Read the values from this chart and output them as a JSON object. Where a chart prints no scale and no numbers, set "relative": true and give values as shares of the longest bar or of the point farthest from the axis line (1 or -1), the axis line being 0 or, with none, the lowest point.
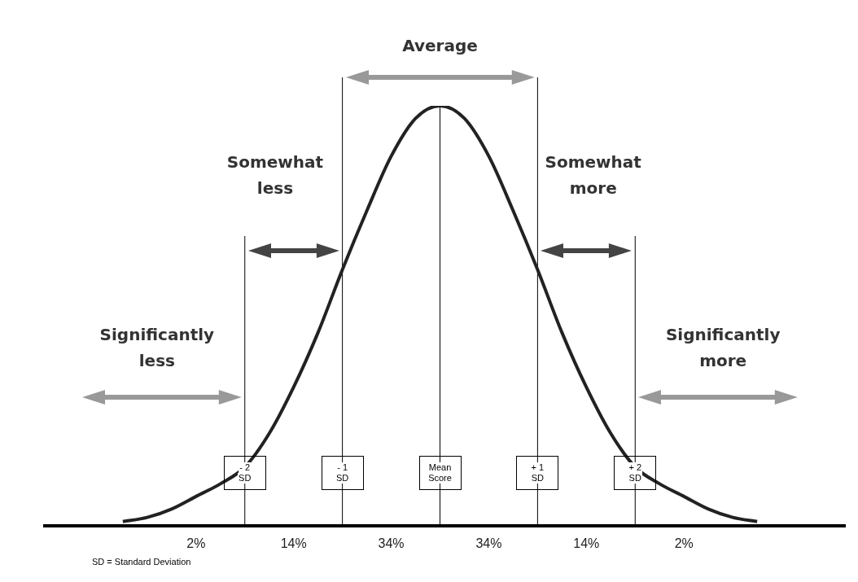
{
  "chart_data": {
    "type": "line",
    "relative": true,
    "x": [
      -3.25,
      -3,
      -2.75,
      -2.5,
      -2.25,
      -2,
      -1.75,
      -1.5,
      -1.25,
      -1,
      -0.75,
      -0.5,
      -0.25,
      0,
      0.25,
      0.5,
      0.75,
      1,
      1.25,
      1.5,
      1.75,
      2,
      2.25,
      2.5,
      2.75,
      3,
      3.25
    ],
    "series": [
      {
        "color": "#222222",
        "values": [
          0.01,
          0.02,
          0.04,
          0.07,
          0.1,
          0.14,
          0.22,
          0.33,
          0.46,
          0.61,
          0.75,
          0.88,
          0.97,
          1,
          0.97,
          0.88,
          0.75,
          0.61,
          0.46,
          0.33,
          0.22,
          0.14,
          0.1,
          0.07,
          0.04,
          0.02,
          0.01
        ]
      }
    ],
    "xlim": [
      -4.05,
      4.15
    ],
    "xticks": [
      {
        "value": -2,
        "label": "- 2 SD"
      },
      {
        "value": -1,
        "label": "- 1 SD"
      },
      {
        "value": 0,
        "label": "Mean Score"
      },
      {
        "value": 1,
        "label": "+ 1 SD"
      },
      {
        "value": 2,
        "label": "+ 2 SD"
      }
    ],
    "ref_lines": [
      {
        "axis": "x",
        "value": -2,
        "color": "#000000"
      },
      {
        "axis": "x",
        "value": -1,
        "color": "#000000"
      },
      {
        "axis": "x",
        "value": 0,
        "color": "#000000"
      },
      {
        "axis": "x",
        "value": 1,
        "color": "#000000"
      },
      {
        "axis": "x",
        "value": 2,
        "color": "#000000"
      }
    ],
    "annotations": [
      "Average",
      "Somewhat less",
      "Somewhat more",
      "Significantly less",
      "Significantly more",
      "SD = Standard Deviation",
      "2%",
      "14%",
      "34%",
      "34%",
      "14%",
      "2%"
    ],
    "legend": false,
    "marker": "none",
    "line_style": "solid"
  }
}
